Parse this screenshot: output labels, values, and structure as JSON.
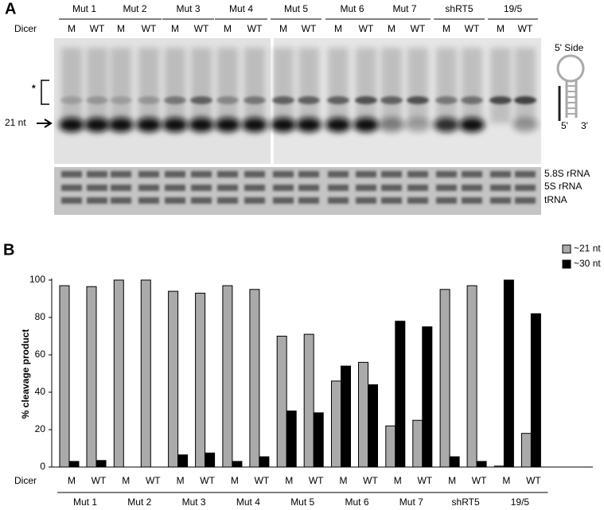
{
  "panel_a": {
    "label": "A",
    "dicer": "Dicer",
    "groups": [
      "Mut 1",
      "Mut 2",
      "Mut 3",
      "Mut 4",
      "Mut 5",
      "Mut 6",
      "Mut 7",
      "shRT5",
      "19/5"
    ],
    "lanes": [
      "M",
      "WT",
      "M",
      "WT",
      "M",
      "WT",
      "M",
      "WT",
      "M",
      "WT",
      "M",
      "WT",
      "M",
      "WT",
      "M",
      "WT",
      "M",
      "WT"
    ],
    "star": "*",
    "marker": "21 nt",
    "hairpin": {
      "title": "5' Side",
      "left": "5'",
      "right": "3'"
    },
    "rna_labels": [
      "5.8S rRNA",
      "5S rRNA",
      "tRNA"
    ]
  },
  "chart_data": {
    "type": "bar",
    "panel_label": "B",
    "ylabel": "% cleavage product",
    "xlabel": "Dicer",
    "categories": [
      "M",
      "WT",
      "M",
      "WT",
      "M",
      "WT",
      "M",
      "WT",
      "M",
      "WT",
      "M",
      "WT",
      "M",
      "WT",
      "M",
      "WT",
      "M",
      "WT"
    ],
    "groups": [
      "Mut 1",
      "Mut 2",
      "Mut 3",
      "Mut 4",
      "Mut 5",
      "Mut 6",
      "Mut 7",
      "shRT5",
      "19/5"
    ],
    "series": [
      {
        "name": "~21 nt",
        "color": "#aaaaaa",
        "values": [
          97,
          96.5,
          100,
          100,
          94,
          93,
          97,
          95,
          70,
          71,
          46,
          56,
          22,
          25,
          95,
          97,
          0.5,
          18
        ]
      },
      {
        "name": "~30 nt",
        "color": "#000000",
        "values": [
          3,
          3.5,
          0,
          0,
          6.5,
          7.5,
          3,
          5.5,
          30,
          29,
          54,
          44,
          78,
          75,
          5.5,
          3,
          100,
          82
        ]
      }
    ],
    "ylim": [
      0,
      100
    ],
    "yticks": [
      0,
      20,
      40,
      60,
      80,
      100
    ]
  }
}
